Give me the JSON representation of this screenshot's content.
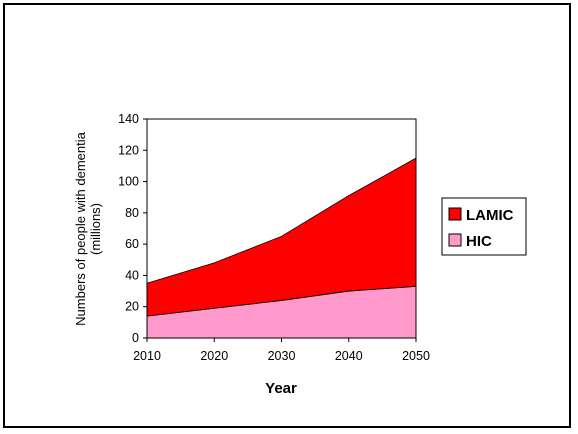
{
  "chart_data": {
    "type": "area",
    "stacked": true,
    "x": [
      2010,
      2020,
      2030,
      2040,
      2050
    ],
    "series": [
      {
        "name": "HIC",
        "values": [
          14,
          19,
          24,
          30,
          33
        ],
        "color": "#ff99cc"
      },
      {
        "name": "LAMIC",
        "values": [
          21,
          29,
          41,
          61,
          82
        ],
        "color": "#ff0000"
      }
    ],
    "xlabel": "Year",
    "ylabel_line1": "Numbers of people with dementia",
    "ylabel_line2": "(millions)",
    "xlim": [
      2010,
      2050
    ],
    "ylim": [
      0,
      140
    ],
    "yticks": [
      0,
      20,
      40,
      60,
      80,
      100,
      120,
      140
    ],
    "xticks": [
      2010,
      2020,
      2030,
      2040,
      2050
    ],
    "grid": false,
    "legend_position": "right",
    "legend_order": [
      "LAMIC",
      "HIC"
    ]
  }
}
